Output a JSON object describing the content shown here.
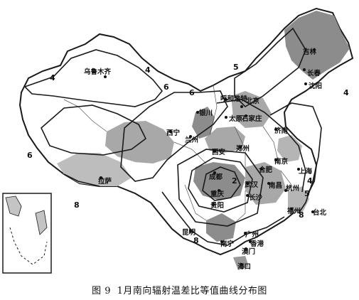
{
  "caption": {
    "figure_no": "图 9",
    "title": "1月南向辐射温差比等值曲线分布图"
  },
  "isolines": {
    "l4a": "4",
    "l4b": "4",
    "l4c": "4",
    "l4d": "4",
    "l5a": "5",
    "l5b": "5",
    "l6a": "6",
    "l6b": "6",
    "l6c": "6",
    "l8a": "8",
    "l8b": "8",
    "l8c": "8",
    "l2": "2"
  },
  "cities": {
    "urumqi": "乌鲁木齐",
    "changchun": "长春",
    "shenyang": "沈阳",
    "jilin": "吉林",
    "hohhot": "呼和浩特",
    "beijing": "北京",
    "taiyuan": "太原",
    "shijiazhuang": "石家庄",
    "yinchuan": "银川",
    "xining": "西宁",
    "lanzhou": "兰州",
    "jinan": "济南",
    "xian": "西安",
    "zhengzhou": "郑州",
    "nanjing": "南京",
    "hefei": "合肥",
    "shanghai": "上海",
    "lhasa": "拉萨",
    "chengdu": "成都",
    "chongqing": "重庆",
    "wuhan": "武汉",
    "nanchang": "南昌",
    "hangzhou": "杭州",
    "changsha": "长沙",
    "guiyang": "贵阳",
    "fuzhou": "福州",
    "taipei": "台北",
    "kunming": "昆明",
    "guangzhou": "广州",
    "nanning": "南宁",
    "hongkong": "香港",
    "macau": "澳门",
    "haikou": "海口"
  },
  "colors": {
    "outline": "#1a1a1a",
    "shade_dark": "#8c8c8c",
    "shade_mid": "#a8a8a8",
    "shade_light": "#c4c4c4",
    "background": "#ffffff"
  }
}
